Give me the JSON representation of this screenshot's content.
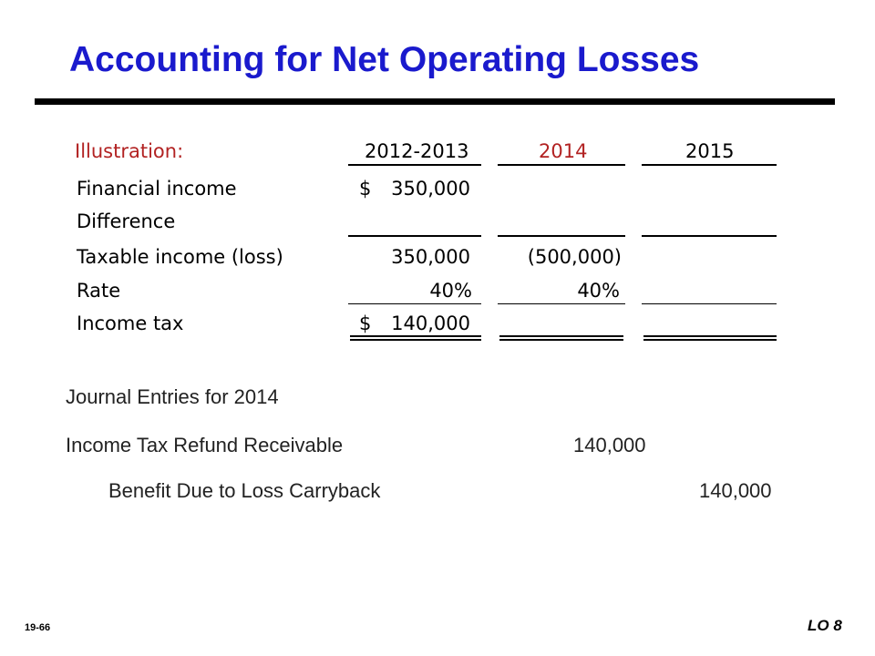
{
  "slide": {
    "title": "Accounting for Net Operating Losses",
    "page_number": "19-66",
    "lo_tag": "LO 8"
  },
  "illustration": {
    "header_label": "Illustration:",
    "columns": [
      "2012-2013",
      "2014",
      "2015"
    ],
    "rows": [
      {
        "label": "Financial income",
        "c1_sign": "$",
        "c1": "350,000",
        "c2": "",
        "c3": ""
      },
      {
        "label": "Difference",
        "c1_sign": "",
        "c1": "",
        "c2": "",
        "c3": ""
      },
      {
        "label": "Taxable income (loss)",
        "c1_sign": "",
        "c1": "350,000",
        "c2": "(500,000)",
        "c3": ""
      },
      {
        "label": "Rate",
        "c1_sign": "",
        "c1": "40%",
        "c2": "40%",
        "c3": ""
      },
      {
        "label": "Income tax",
        "c1_sign": "$",
        "c1": "140,000",
        "c2": "",
        "c3": ""
      }
    ]
  },
  "journal": {
    "heading": "Journal Entries for 2014",
    "entries": [
      {
        "account": "Income Tax Refund Receivable",
        "debit": "140,000",
        "credit": ""
      },
      {
        "account": "Benefit Due to Loss Carryback",
        "debit": "",
        "credit": "140,000"
      }
    ]
  },
  "colors": {
    "title": "#1a1acd",
    "highlight": "#b22222"
  }
}
